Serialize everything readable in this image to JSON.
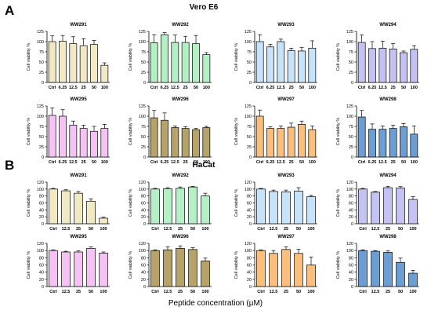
{
  "panels": [
    {
      "letter": "A",
      "title": "Vero E6"
    },
    {
      "letter": "B",
      "title": "HaCat"
    }
  ],
  "footer": "Peptide concentration  (µM)",
  "chart_data": [
    {
      "type": "bar",
      "panel": "A",
      "title": "WW291",
      "ylabel": "Cell viability %",
      "ylim": [
        0,
        125
      ],
      "yticks": [
        0,
        25,
        50,
        75,
        100,
        125
      ],
      "color": "#f1e9c4",
      "categories": [
        "Ctrl",
        "6.25",
        "12.5",
        "25",
        "50",
        "100"
      ],
      "values": [
        100,
        101,
        95,
        90,
        93,
        42
      ],
      "errors": [
        14,
        14,
        17,
        17,
        10,
        6
      ]
    },
    {
      "type": "bar",
      "panel": "A",
      "title": "WW292",
      "ylabel": "Cell viability %",
      "ylim": [
        0,
        125
      ],
      "yticks": [
        0,
        25,
        50,
        75,
        100,
        125
      ],
      "color": "#b3f0c4",
      "categories": [
        "Ctrl",
        "6.25",
        "12.5",
        "25",
        "50",
        "100"
      ],
      "values": [
        97,
        117,
        98,
        98,
        95,
        68
      ],
      "errors": [
        20,
        5,
        18,
        15,
        20,
        5
      ]
    },
    {
      "type": "bar",
      "panel": "A",
      "title": "WW293",
      "ylabel": "Cell viability %",
      "ylim": [
        0,
        125
      ],
      "yticks": [
        0,
        25,
        50,
        75,
        100,
        125
      ],
      "color": "#c7e3fa",
      "categories": [
        "Ctrl",
        "6.25",
        "12.5",
        "25",
        "50",
        "100"
      ],
      "values": [
        100,
        87,
        100,
        78,
        77,
        84
      ],
      "errors": [
        17,
        6,
        6,
        6,
        9,
        18
      ]
    },
    {
      "type": "bar",
      "panel": "A",
      "title": "WW294",
      "ylabel": "Cell viability %",
      "ylim": [
        0,
        125
      ],
      "yticks": [
        0,
        25,
        50,
        75,
        100,
        125
      ],
      "color": "#c3c2f3",
      "categories": [
        "Ctrl",
        "6.25",
        "12.5",
        "25",
        "50",
        "100"
      ],
      "values": [
        98,
        83,
        84,
        82,
        73,
        81
      ],
      "errors": [
        18,
        17,
        17,
        13,
        4,
        9
      ]
    },
    {
      "type": "bar",
      "panel": "A",
      "title": "WW295",
      "ylabel": "Cell viability %",
      "ylim": [
        0,
        125
      ],
      "yticks": [
        0,
        25,
        50,
        75,
        100,
        125
      ],
      "color": "#f5c3f3",
      "categories": [
        "Ctrl",
        "6.25",
        "12.5",
        "25",
        "50",
        "100"
      ],
      "values": [
        102,
        100,
        78,
        70,
        63,
        70
      ],
      "errors": [
        18,
        16,
        10,
        8,
        12,
        10
      ]
    },
    {
      "type": "bar",
      "panel": "A",
      "title": "WW296",
      "ylabel": "Cell viability %",
      "ylim": [
        0,
        125
      ],
      "yticks": [
        0,
        25,
        50,
        75,
        100,
        125
      ],
      "color": "#b5a36a",
      "categories": [
        "Ctrl",
        "6.25",
        "12.5",
        "25",
        "50",
        "100"
      ],
      "values": [
        96,
        90,
        72,
        70,
        67,
        72
      ],
      "errors": [
        18,
        18,
        4,
        4,
        3,
        3
      ]
    },
    {
      "type": "bar",
      "panel": "A",
      "title": "WW297",
      "ylabel": "Cell viability %",
      "ylim": [
        0,
        125
      ],
      "yticks": [
        0,
        25,
        50,
        75,
        100,
        125
      ],
      "color": "#fbbf7d",
      "categories": [
        "Ctrl",
        "6.25",
        "12.5",
        "25",
        "50",
        "100"
      ],
      "values": [
        100,
        70,
        70,
        73,
        80,
        67
      ],
      "errors": [
        15,
        4,
        6,
        10,
        8,
        9
      ]
    },
    {
      "type": "bar",
      "panel": "A",
      "title": "WW298",
      "ylabel": "Cell viability %",
      "ylim": [
        0,
        125
      ],
      "yticks": [
        0,
        25,
        50,
        75,
        100,
        125
      ],
      "color": "#6d9ed3",
      "categories": [
        "Ctrl",
        "6.25",
        "12.5",
        "25",
        "50",
        "100"
      ],
      "values": [
        98,
        68,
        68,
        70,
        74,
        56
      ],
      "errors": [
        16,
        13,
        8,
        8,
        8,
        20
      ]
    },
    {
      "type": "bar",
      "panel": "B",
      "title": "WW291",
      "ylabel": "Cell viability %",
      "ylim": [
        0,
        120
      ],
      "yticks": [
        0,
        20,
        40,
        60,
        80,
        100,
        120
      ],
      "color": "#f1e9c4",
      "categories": [
        "Ctrl",
        "12.5",
        "25",
        "50",
        "100"
      ],
      "values": [
        100,
        95,
        88,
        65,
        16
      ],
      "errors": [
        2,
        3,
        5,
        7,
        3
      ]
    },
    {
      "type": "bar",
      "panel": "B",
      "title": "WW292",
      "ylabel": "Cell viability %",
      "ylim": [
        0,
        120
      ],
      "yticks": [
        0,
        20,
        40,
        60,
        80,
        100,
        120
      ],
      "color": "#b3f0c4",
      "categories": [
        "Ctrl",
        "12.5",
        "25",
        "50",
        "100"
      ],
      "values": [
        100,
        101,
        102,
        106,
        80
      ],
      "errors": [
        2,
        3,
        4,
        2,
        8
      ]
    },
    {
      "type": "bar",
      "panel": "B",
      "title": "WW293",
      "ylabel": "Cell viability %",
      "ylim": [
        0,
        120
      ],
      "yticks": [
        0,
        20,
        40,
        60,
        80,
        100,
        120
      ],
      "color": "#c7e3fa",
      "categories": [
        "Ctrl",
        "12.5",
        "25",
        "50",
        "100"
      ],
      "values": [
        100,
        93,
        92,
        94,
        78
      ],
      "errors": [
        2,
        4,
        5,
        10,
        4
      ]
    },
    {
      "type": "bar",
      "panel": "B",
      "title": "WW294",
      "ylabel": "Cell viability %",
      "ylim": [
        0,
        120
      ],
      "yticks": [
        0,
        20,
        40,
        60,
        80,
        100,
        120
      ],
      "color": "#c3c2f3",
      "categories": [
        "Ctrl",
        "12.5",
        "25",
        "50",
        "100"
      ],
      "values": [
        100,
        91,
        104,
        103,
        70
      ],
      "errors": [
        2,
        2,
        4,
        4,
        8
      ]
    },
    {
      "type": "bar",
      "panel": "B",
      "title": "WW295",
      "ylabel": "Cell viability %",
      "ylim": [
        0,
        120
      ],
      "yticks": [
        0,
        20,
        40,
        60,
        80,
        100,
        120
      ],
      "color": "#f5c3f3",
      "categories": [
        "Ctrl",
        "12.5",
        "25",
        "50",
        "100"
      ],
      "values": [
        100,
        96,
        96,
        106,
        93
      ],
      "errors": [
        2,
        2,
        3,
        4,
        3
      ]
    },
    {
      "type": "bar",
      "panel": "B",
      "title": "WW296",
      "ylabel": "Cell viability %",
      "ylim": [
        0,
        120
      ],
      "yticks": [
        0,
        20,
        40,
        60,
        80,
        100,
        120
      ],
      "color": "#b5a36a",
      "categories": [
        "Ctrl",
        "12.5",
        "25",
        "50",
        "100"
      ],
      "values": [
        100,
        102,
        106,
        103,
        71
      ],
      "errors": [
        2,
        8,
        7,
        5,
        8
      ]
    },
    {
      "type": "bar",
      "panel": "B",
      "title": "WW297",
      "ylabel": "Cell viability %",
      "ylim": [
        0,
        120
      ],
      "yticks": [
        0,
        20,
        40,
        60,
        80,
        100,
        120
      ],
      "color": "#fbbf7d",
      "categories": [
        "Ctrl",
        "12.5",
        "25",
        "50",
        "100"
      ],
      "values": [
        100,
        92,
        103,
        92,
        60
      ],
      "errors": [
        2,
        8,
        7,
        12,
        22
      ]
    },
    {
      "type": "bar",
      "panel": "B",
      "title": "WW298",
      "ylabel": "Cell viability %",
      "ylim": [
        0,
        120
      ],
      "yticks": [
        0,
        20,
        40,
        60,
        80,
        100,
        120
      ],
      "color": "#6d9ed3",
      "categories": [
        "Ctrl",
        "12.5",
        "25",
        "50",
        "100"
      ],
      "values": [
        100,
        98,
        95,
        67,
        37
      ],
      "errors": [
        2,
        2,
        4,
        12,
        8
      ]
    }
  ]
}
